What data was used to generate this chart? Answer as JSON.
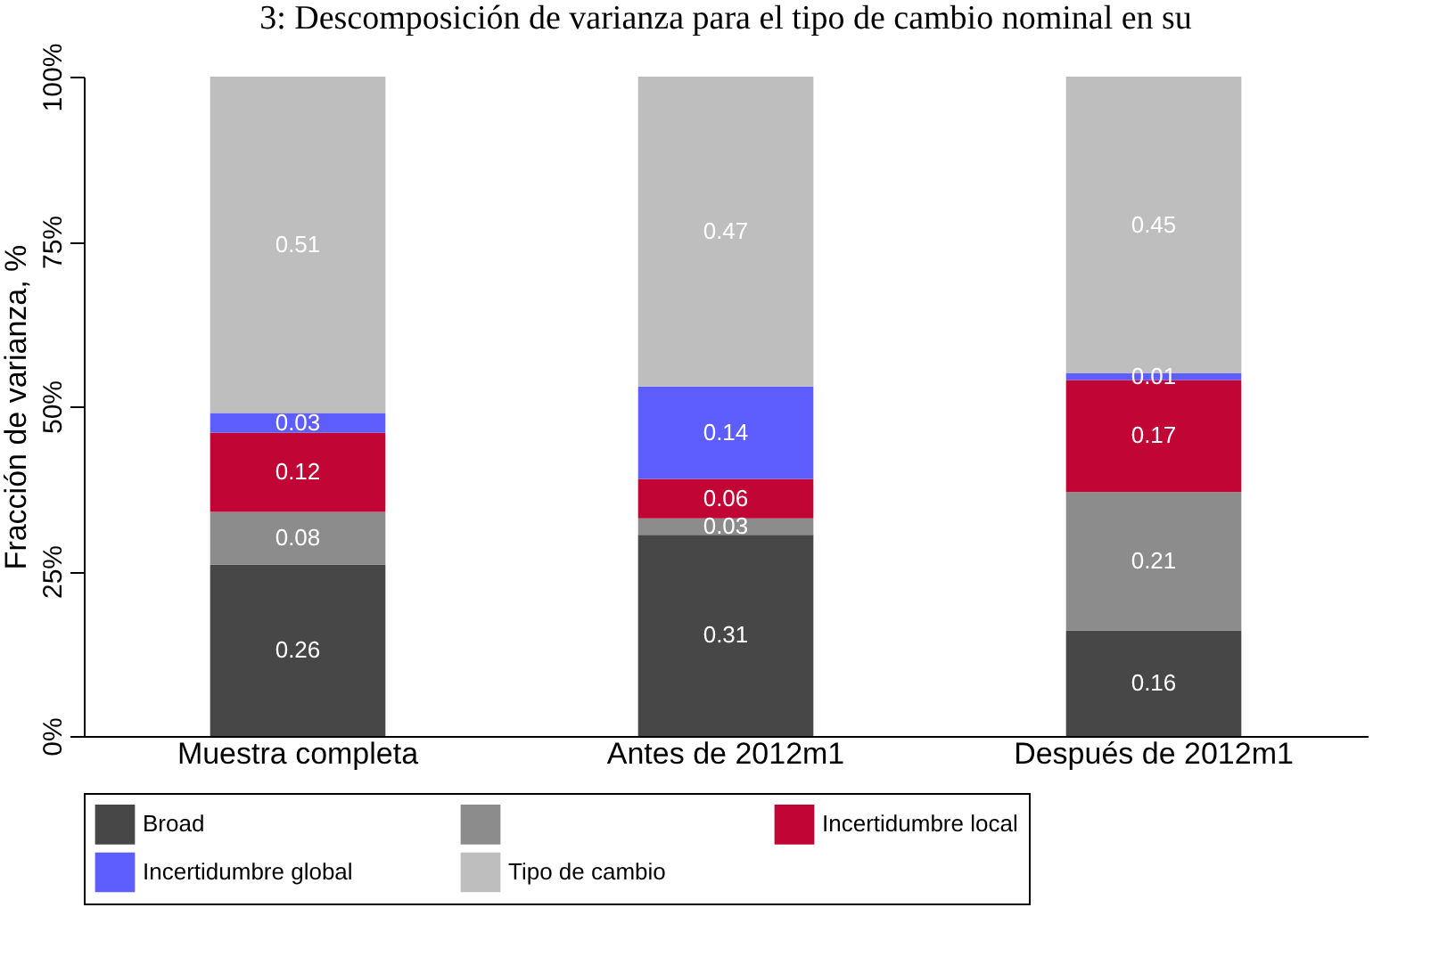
{
  "chart_data": {
    "type": "bar",
    "title": "3: Descomposición de varianza para el tipo de cambio nominal en su",
    "ylabel": "Fracción de varianza, %",
    "categories": [
      "Muestra completa",
      "Antes de 2012m1",
      "Después de 2012m1"
    ],
    "stacked": true,
    "legend": "bottom",
    "grid": false,
    "ylim": [
      0,
      1
    ],
    "yticks": [
      {
        "value": 0,
        "label": "0%"
      },
      {
        "value": 0.25,
        "label": "25%"
      },
      {
        "value": 0.5,
        "label": "50%"
      },
      {
        "value": 0.75,
        "label": "75%"
      },
      {
        "value": 1,
        "label": "100%"
      }
    ],
    "series": [
      {
        "name": "Broad",
        "color": "#474747",
        "values": [
          0.26,
          0.305,
          0.16
        ],
        "value_labels": [
          "0.26",
          "0.31",
          "0.16"
        ]
      },
      {
        "color": "#8c8c8c",
        "values": [
          0.08,
          0.025,
          0.21
        ],
        "value_labels": [
          "0.08",
          "0.03",
          "0.21"
        ]
      },
      {
        "name": "Incertidumbre local",
        "color": "#c10534",
        "values": [
          0.12,
          0.06,
          0.17
        ],
        "value_labels": [
          "0.12",
          "0.06",
          "0.17"
        ]
      },
      {
        "name": "Incertidumbre global",
        "color": "#5e5eff",
        "values": [
          0.03,
          0.14,
          0.01
        ],
        "value_labels": [
          "0.03",
          "0.14",
          "0.01"
        ]
      },
      {
        "name": "Tipo de cambio",
        "color": "#bebebe",
        "values": [
          0.51,
          0.47,
          0.45
        ],
        "value_labels": [
          "0.51",
          "0.47",
          "0.45"
        ]
      }
    ]
  }
}
